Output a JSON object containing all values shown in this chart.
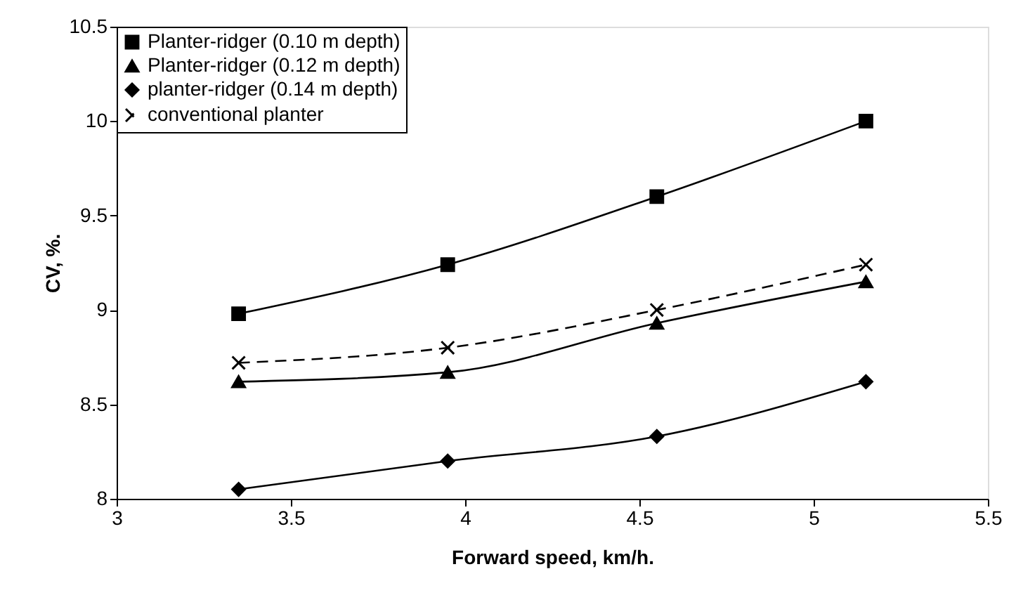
{
  "chart_data": {
    "type": "line",
    "xlabel": "Forward speed, km/h.",
    "ylabel": "CV, %.",
    "x": [
      3.35,
      3.95,
      4.55,
      5.15
    ],
    "xlim": [
      3,
      5.5
    ],
    "xticks": [
      3,
      3.5,
      4,
      4.5,
      5,
      5.5
    ],
    "ylim": [
      8,
      10.5
    ],
    "yticks": [
      8,
      8.5,
      9,
      9.5,
      10,
      10.5
    ],
    "grid": false,
    "legend": "top left",
    "series": [
      {
        "name": "Planter-ridger (0.10 m depth)",
        "color": "#000000",
        "marker": "square",
        "line_style": "solid",
        "values": [
          8.98,
          9.24,
          9.6,
          10.0
        ]
      },
      {
        "name": "Planter-ridger (0.12 m depth)",
        "color": "#000000",
        "marker": "triangle",
        "line_style": "solid",
        "values": [
          8.62,
          8.67,
          8.93,
          9.15
        ]
      },
      {
        "name": "planter-ridger (0.14 m depth)",
        "color": "#000000",
        "marker": "diamond",
        "line_style": "solid",
        "values": [
          8.05,
          8.2,
          8.33,
          8.62
        ]
      },
      {
        "name": "conventional planter",
        "color": "#000000",
        "marker": "cross",
        "line_style": "dashed",
        "values": [
          8.72,
          8.8,
          9.0,
          9.24
        ]
      }
    ]
  }
}
